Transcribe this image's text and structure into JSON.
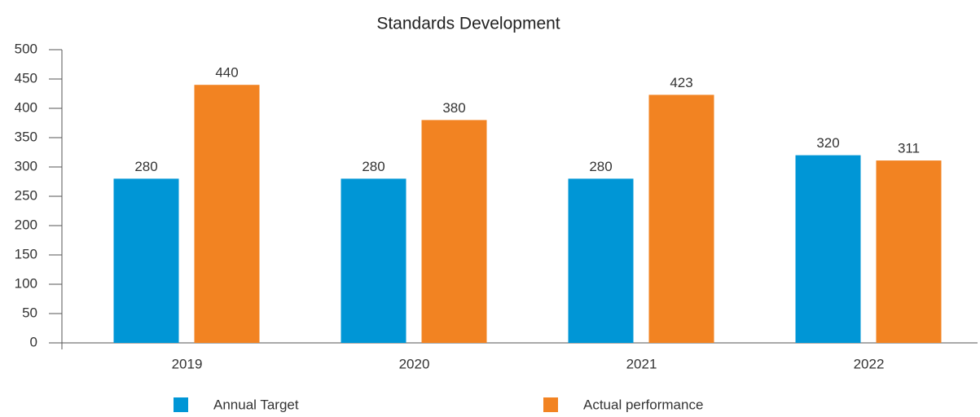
{
  "chart_data": {
    "type": "bar",
    "title": "Standards Development",
    "categories": [
      "2019",
      "2020",
      "2021",
      "2022"
    ],
    "series": [
      {
        "name": "Annual Target",
        "color": "#0096d6",
        "values": [
          280,
          280,
          280,
          320
        ]
      },
      {
        "name": "Actual performance",
        "color": "#f28322",
        "values": [
          440,
          380,
          423,
          311
        ]
      }
    ],
    "ylim": [
      0,
      500
    ],
    "yticks": [
      0,
      50,
      100,
      150,
      200,
      250,
      300,
      350,
      400,
      450,
      500
    ],
    "grid": false,
    "legend": "bottom"
  }
}
